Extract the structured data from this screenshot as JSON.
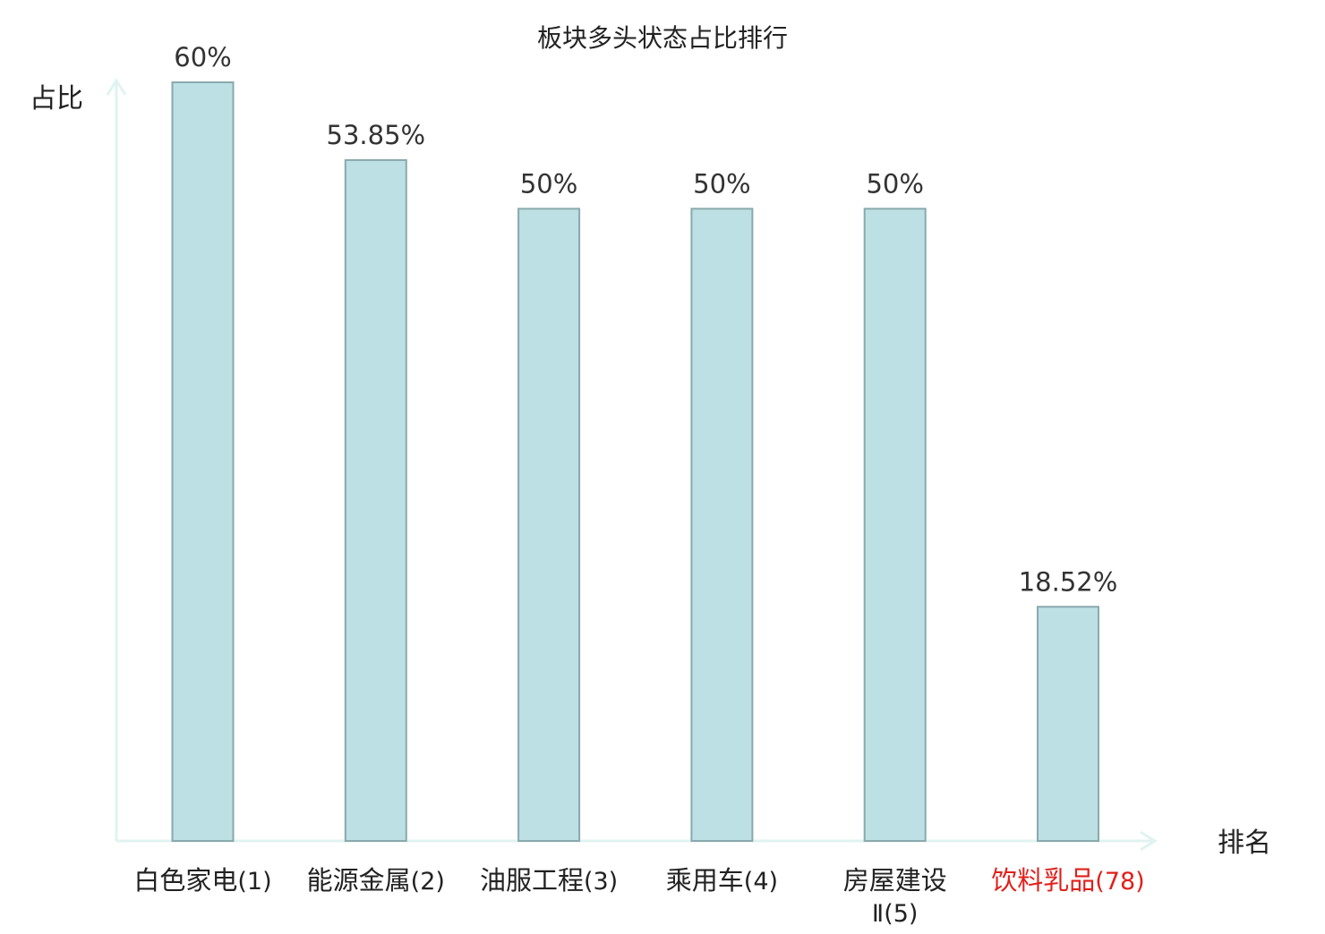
{
  "chart_data": {
    "type": "bar",
    "title": "板块多头状态占比排行",
    "ylabel": "占比",
    "xlabel": "排名",
    "categories": [
      {
        "label": "白色家电",
        "rank": "(1)",
        "highlight": false
      },
      {
        "label": "能源金属",
        "rank": "(2)",
        "highlight": false
      },
      {
        "label": "油服工程",
        "rank": "(3)",
        "highlight": false
      },
      {
        "label": "乘用车",
        "rank": "(4)",
        "highlight": false
      },
      {
        "label": "房屋建设",
        "label_line2": "Ⅱ",
        "rank": "(5)",
        "highlight": false
      },
      {
        "label": "饮料乳品",
        "rank": "(78)",
        "highlight": true
      }
    ],
    "values": [
      60,
      53.85,
      50,
      50,
      50,
      18.52
    ],
    "value_labels": [
      "60%",
      "53.85%",
      "50%",
      "50%",
      "50%",
      "18.52%"
    ],
    "ylim": [
      0,
      60
    ],
    "grid": false,
    "colors": {
      "bar_fill": "#bce0e3",
      "bar_stroke": "#8aa9ad",
      "axis": "#e0f3f0",
      "text": "#222222",
      "value_text": "#333333",
      "highlight_text": "#e0201b"
    }
  }
}
